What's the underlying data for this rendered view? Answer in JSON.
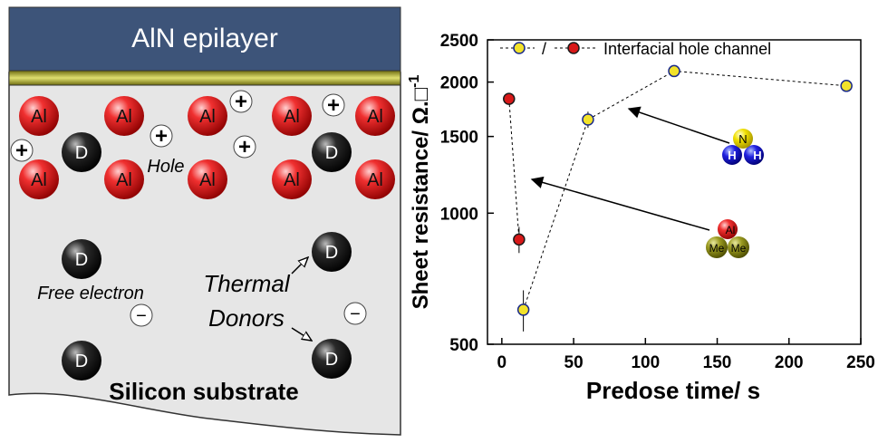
{
  "left_panel": {
    "header_text": "AlN epilayer",
    "substrate_label": "Silicon substrate",
    "hole_label": "Hole",
    "free_electron_label": "Free electron",
    "thermal_label": "Thermal",
    "donors_label": "Donors",
    "al_symbol": "Al",
    "donor_symbol": "D",
    "plus_symbol": "+",
    "minus_symbol": "−",
    "colors": {
      "header": "#3d5479",
      "interlayer": "#8c8a1c",
      "substrate": "#e6e6e6",
      "al_atom": "#e02020",
      "donor": "#222222"
    }
  },
  "chart_data": {
    "type": "scatter",
    "xlabel": "Predose time/ s",
    "ylabel_text": "Sheet resistance/ Ω.",
    "ylabel_unit": "□",
    "ylabel_sup": "-1",
    "y_scale": "log",
    "xlim": [
      -10,
      250
    ],
    "ylim": [
      500,
      2500
    ],
    "x_ticks": [
      0,
      50,
      100,
      150,
      200,
      250
    ],
    "y_ticks": [
      500,
      1000,
      1500,
      2000,
      2500
    ],
    "y_tick_labels": [
      "500",
      "1000",
      "1500",
      "2000",
      "2500"
    ],
    "legend": {
      "position": "top",
      "slash": "/",
      "entry": "Interfacial hole channel"
    },
    "series": [
      {
        "key": "nh3",
        "color": "#f2e22a",
        "points": [
          [
            15,
            600,
            65
          ],
          [
            60,
            1640,
            70
          ],
          [
            120,
            2120,
            0
          ],
          [
            240,
            1960,
            60
          ]
        ]
      },
      {
        "key": "tma",
        "name": "Interfacial hole channel",
        "color": "#d81818",
        "points": [
          [
            5,
            1830,
            0
          ],
          [
            12,
            870,
            60
          ]
        ]
      }
    ],
    "molecules": {
      "nh3": {
        "center": "N",
        "ligand": "H"
      },
      "tma": {
        "center": "Al",
        "ligand": "Me"
      }
    }
  }
}
